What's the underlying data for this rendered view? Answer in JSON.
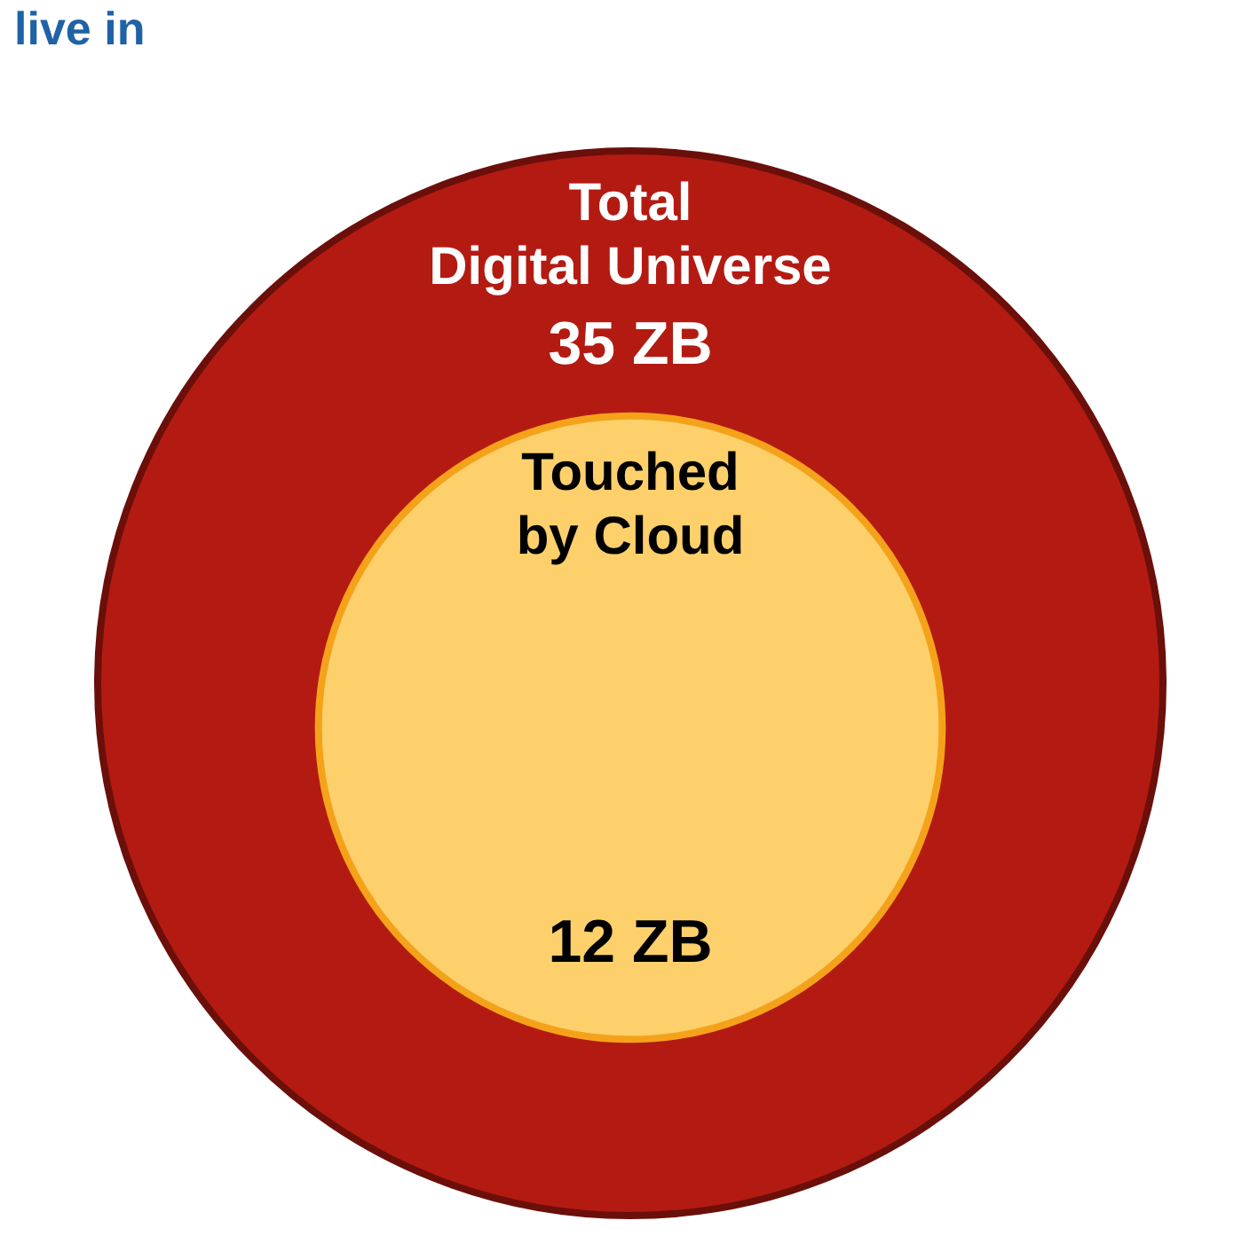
{
  "chart_data": {
    "type": "other",
    "title": "live in",
    "categories": [
      "Total\nDigital Universe",
      "Touched\nby Cloud"
    ],
    "values": [
      35,
      12
    ],
    "value_labels": [
      "35 ZB",
      "12 ZB"
    ],
    "colors": [
      "#b31b12",
      "#fdd06c"
    ]
  }
}
